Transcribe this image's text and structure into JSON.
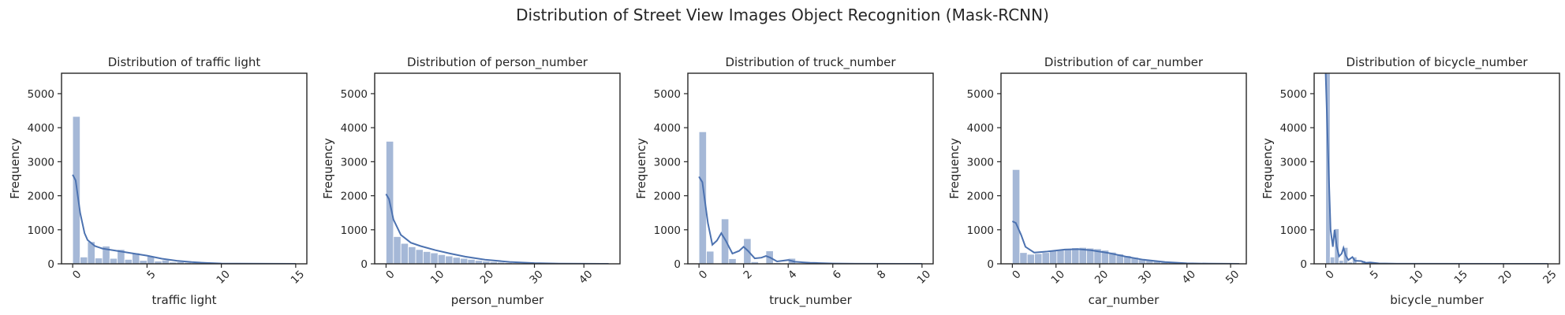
{
  "figure": {
    "title": "Distribution of Street View Images Object Recognition (Mask-RCNN)"
  },
  "chart_data": [
    {
      "type": "bar",
      "title": "Distribution of traffic light",
      "xlabel": "traffic light",
      "ylabel": "Frequency",
      "xlim": [
        -0.75,
        15.75
      ],
      "ylim": [
        0,
        5600
      ],
      "xticks": [
        0,
        5,
        10,
        15
      ],
      "yticks": [
        0,
        1000,
        2000,
        3000,
        4000,
        5000
      ],
      "bin_width": 0.5,
      "bins_left_edges": [
        0,
        0.5,
        1,
        1.5,
        2,
        2.5,
        3,
        3.5,
        4,
        4.5,
        5,
        5.5,
        6,
        6.5,
        7,
        7.5,
        8,
        8.5,
        9,
        9.5,
        10
      ],
      "values": [
        4330,
        200,
        650,
        170,
        520,
        160,
        420,
        130,
        320,
        100,
        220,
        80,
        110,
        50,
        60,
        40,
        35,
        25,
        20,
        15,
        10
      ],
      "kde": [
        [
          0,
          2620
        ],
        [
          0.2,
          2450
        ],
        [
          0.5,
          1500
        ],
        [
          0.8,
          900
        ],
        [
          1,
          700
        ],
        [
          1.5,
          520
        ],
        [
          2,
          450
        ],
        [
          3,
          380
        ],
        [
          4,
          310
        ],
        [
          5,
          240
        ],
        [
          6,
          150
        ],
        [
          7,
          90
        ],
        [
          8,
          50
        ],
        [
          9,
          25
        ],
        [
          10,
          10
        ],
        [
          11,
          4
        ],
        [
          15,
          0
        ]
      ],
      "grid": false
    },
    {
      "type": "bar",
      "title": "Distribution of person_number",
      "xlabel": "person_number",
      "ylabel": "Frequency",
      "xlim": [
        -2.3,
        47.3
      ],
      "ylim": [
        0,
        5600
      ],
      "xticks": [
        0,
        10,
        20,
        30,
        40
      ],
      "yticks": [
        0,
        1000,
        2000,
        3000,
        4000,
        5000
      ],
      "bin_width": 1.5,
      "bins_left_edges": [
        0,
        1.5,
        3,
        4.5,
        6,
        7.5,
        9,
        10.5,
        12,
        13.5,
        15,
        16.5,
        18,
        19.5,
        21,
        22.5,
        24,
        25.5,
        27,
        28.5,
        30
      ],
      "values": [
        3600,
        800,
        600,
        500,
        420,
        360,
        320,
        270,
        230,
        190,
        160,
        130,
        100,
        80,
        60,
        45,
        35,
        25,
        18,
        12,
        8
      ],
      "kde": [
        [
          0,
          2050
        ],
        [
          0.6,
          1900
        ],
        [
          1.5,
          1300
        ],
        [
          3,
          850
        ],
        [
          5,
          620
        ],
        [
          7,
          520
        ],
        [
          10,
          400
        ],
        [
          13,
          300
        ],
        [
          16,
          210
        ],
        [
          20,
          120
        ],
        [
          25,
          55
        ],
        [
          30,
          20
        ],
        [
          35,
          6
        ],
        [
          40,
          2
        ],
        [
          45,
          0
        ]
      ],
      "grid": false
    },
    {
      "type": "bar",
      "title": "Distribution of truck_number",
      "xlabel": "truck_number",
      "ylabel": "Frequency",
      "xlim": [
        -0.5,
        10.5
      ],
      "ylim": [
        0,
        5600
      ],
      "xticks": [
        0,
        2,
        4,
        6,
        8,
        10
      ],
      "yticks": [
        0,
        1000,
        2000,
        3000,
        4000,
        5000
      ],
      "bin_width": 0.333,
      "bins_left_edges": [
        0,
        0.333,
        1,
        1.333,
        2,
        2.333,
        3,
        3.333,
        4,
        4.333,
        5,
        5.333,
        6
      ],
      "values": [
        3880,
        370,
        1320,
        150,
        740,
        60,
        380,
        30,
        160,
        15,
        60,
        10,
        20
      ],
      "kde": [
        [
          0,
          2560
        ],
        [
          0.15,
          2400
        ],
        [
          0.4,
          1200
        ],
        [
          0.6,
          560
        ],
        [
          0.8,
          680
        ],
        [
          1,
          900
        ],
        [
          1.2,
          680
        ],
        [
          1.5,
          300
        ],
        [
          1.8,
          380
        ],
        [
          2,
          500
        ],
        [
          2.2,
          380
        ],
        [
          2.5,
          160
        ],
        [
          2.8,
          180
        ],
        [
          3,
          230
        ],
        [
          3.2,
          180
        ],
        [
          3.5,
          70
        ],
        [
          4,
          110
        ],
        [
          4.3,
          60
        ],
        [
          5,
          30
        ],
        [
          6,
          10
        ],
        [
          7,
          3
        ],
        [
          10,
          0
        ]
      ],
      "grid": false
    },
    {
      "type": "bar",
      "title": "Distribution of car_number",
      "xlabel": "car_number",
      "ylabel": "Frequency",
      "xlim": [
        -2.6,
        53.6
      ],
      "ylim": [
        0,
        5600
      ],
      "xticks": [
        0,
        10,
        20,
        30,
        40,
        50
      ],
      "yticks": [
        0,
        1000,
        2000,
        3000,
        4000,
        5000
      ],
      "bin_width": 1.7,
      "bins_left_edges": [
        0,
        1.7,
        3.4,
        5.1,
        6.8,
        8.5,
        10.2,
        11.9,
        13.6,
        15.3,
        17,
        18.7,
        20.4,
        22.1,
        23.8,
        25.5,
        27.2,
        28.9,
        30.6,
        32.3,
        34,
        35.7,
        37.4
      ],
      "values": [
        2770,
        330,
        280,
        300,
        330,
        380,
        420,
        450,
        470,
        480,
        460,
        440,
        400,
        340,
        290,
        240,
        190,
        150,
        110,
        80,
        50,
        30,
        15
      ],
      "kde": [
        [
          0,
          1250
        ],
        [
          0.8,
          1200
        ],
        [
          2,
          850
        ],
        [
          3,
          500
        ],
        [
          5,
          330
        ],
        [
          8,
          360
        ],
        [
          12,
          420
        ],
        [
          15,
          430
        ],
        [
          18,
          400
        ],
        [
          22,
          320
        ],
        [
          26,
          210
        ],
        [
          30,
          120
        ],
        [
          35,
          50
        ],
        [
          40,
          15
        ],
        [
          45,
          4
        ],
        [
          52,
          0
        ]
      ],
      "grid": false
    },
    {
      "type": "bar",
      "title": "Distribution of bicycle_number",
      "xlabel": "bicycle_number",
      "ylabel": "Frequency",
      "xlim": [
        -1.3,
        26.3
      ],
      "ylim": [
        0,
        5600
      ],
      "xticks": [
        0,
        5,
        10,
        15,
        20,
        25
      ],
      "yticks": [
        0,
        1000,
        2000,
        3000,
        4000,
        5000
      ],
      "bin_width": 0.5,
      "bins_left_edges": [
        0,
        0.5,
        1,
        1.5,
        2,
        2.5,
        3,
        3.5,
        4,
        4.5,
        5,
        5.5,
        6
      ],
      "values": [
        5600,
        200,
        1030,
        100,
        480,
        50,
        200,
        25,
        90,
        15,
        40,
        10,
        15
      ],
      "kde": [
        [
          0,
          5600
        ],
        [
          0.3,
          3000
        ],
        [
          0.55,
          1000
        ],
        [
          0.8,
          500
        ],
        [
          1,
          1000
        ],
        [
          1.25,
          500
        ],
        [
          1.5,
          220
        ],
        [
          1.8,
          300
        ],
        [
          2,
          470
        ],
        [
          2.25,
          240
        ],
        [
          2.55,
          110
        ],
        [
          3,
          200
        ],
        [
          3.3,
          90
        ],
        [
          4,
          80
        ],
        [
          4.5,
          30
        ],
        [
          5,
          40
        ],
        [
          6,
          12
        ],
        [
          8,
          3
        ],
        [
          25,
          0
        ]
      ],
      "grid": false
    }
  ]
}
